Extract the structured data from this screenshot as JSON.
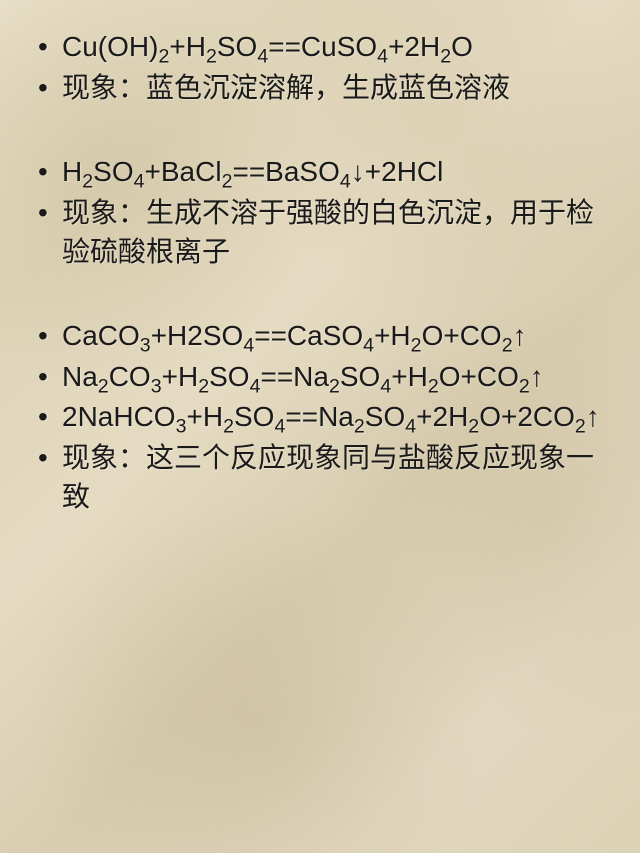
{
  "slide": {
    "background_colors": [
      "#e8e0c8",
      "#ded4b8",
      "#e5dbc2",
      "#d8cdb0"
    ],
    "text_color": "#1a1a1a",
    "font_size": 28,
    "bullets": [
      {
        "type": "equation",
        "parts": [
          "Cu(OH)",
          "2",
          "+H",
          "2",
          "SO",
          "4",
          "==CuSO",
          "4",
          "+2H",
          "2",
          "O"
        ]
      },
      {
        "type": "text",
        "text": "现象：蓝色沉淀溶解，生成蓝色溶液"
      },
      {
        "type": "gap"
      },
      {
        "type": "equation",
        "parts": [
          "H",
          "2",
          "SO",
          "4",
          "+BaCl",
          "2",
          "==BaSO",
          "4",
          "↓+2HCl"
        ]
      },
      {
        "type": "text",
        "text": "现象：生成不溶于强酸的白色沉淀，用于检验硫酸根离子"
      },
      {
        "type": "gap"
      },
      {
        "type": "equation",
        "parts": [
          "CaCO",
          "3",
          "+H2SO",
          "4",
          "==CaSO",
          "4",
          "+H",
          "2",
          "O+CO",
          "2",
          "↑"
        ]
      },
      {
        "type": "equation",
        "parts": [
          "Na",
          "2",
          "CO",
          "3",
          "+H",
          "2",
          "SO",
          "4",
          "==Na",
          "2",
          "SO",
          "4",
          "+H",
          "2",
          "O+CO",
          "2",
          "↑"
        ]
      },
      {
        "type": "equation",
        "parts": [
          "2NaHCO",
          "3",
          "+H",
          "2",
          "SO",
          "4",
          "==Na",
          "2",
          "SO",
          "4",
          "+2H",
          "2",
          "O+2CO",
          "2",
          "↑"
        ]
      },
      {
        "type": "text",
        "text": "现象：这三个反应现象同与盐酸反应现象一致"
      }
    ]
  }
}
